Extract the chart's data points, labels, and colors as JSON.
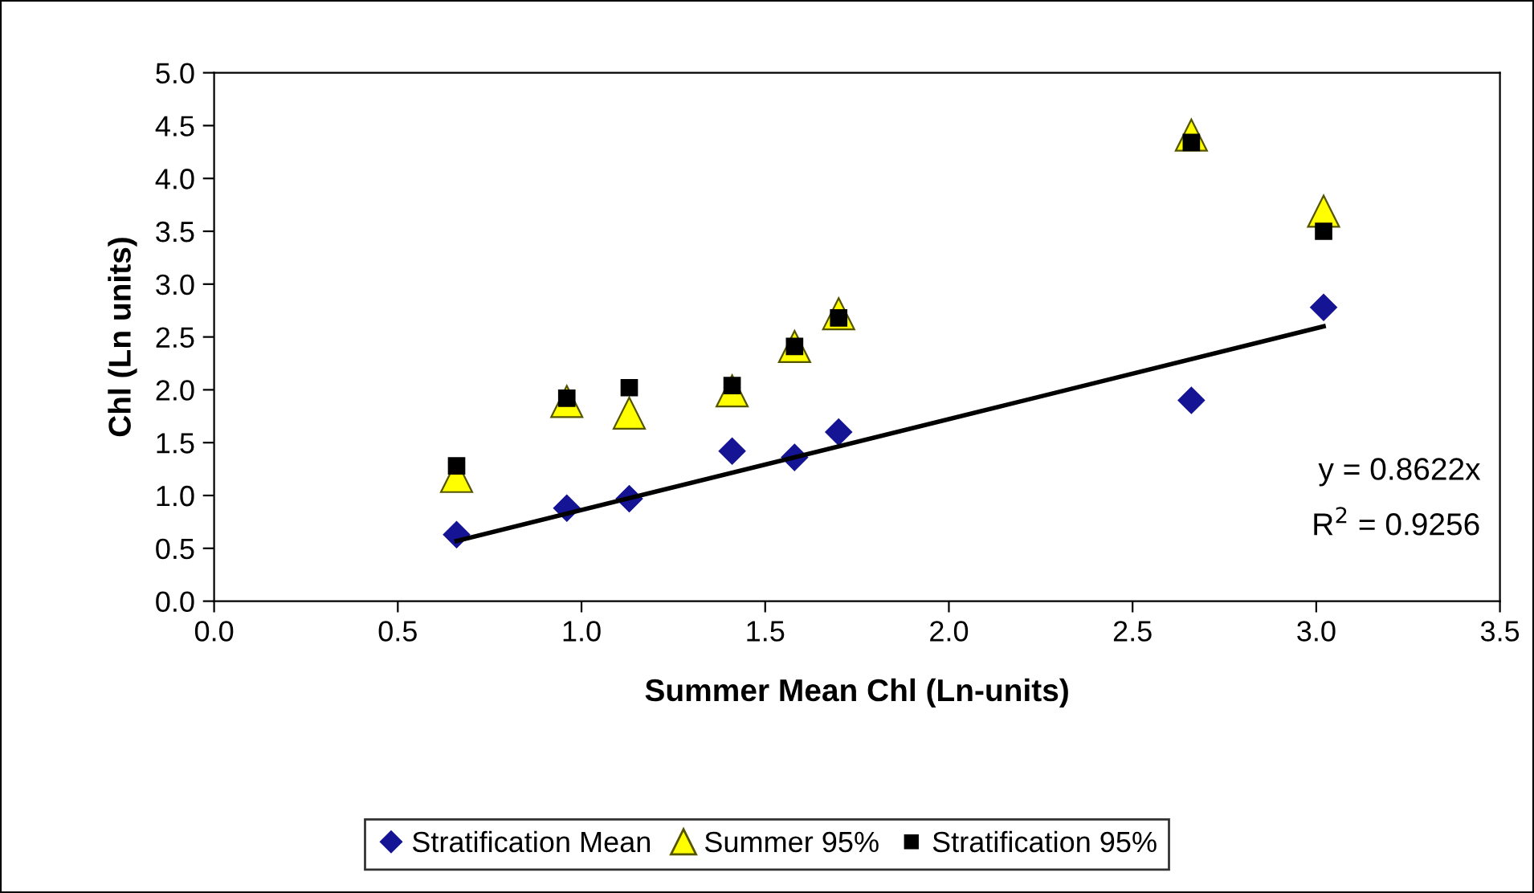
{
  "chart_data": {
    "type": "scatter",
    "xlabel": "Summer Mean Chl (Ln-units)",
    "ylabel": "Chl (Ln units)",
    "xlim": [
      0,
      3.5
    ],
    "ylim": [
      0,
      5
    ],
    "xticks": [
      {
        "value": 0,
        "label": "0.0"
      },
      0.5,
      {
        "value": 1,
        "label": "1.0"
      },
      1.5,
      {
        "value": 2,
        "label": "2.0"
      },
      2.5,
      {
        "value": 3,
        "label": "3.0"
      },
      3.5
    ],
    "yticks": [
      {
        "value": 0,
        "label": "0.0"
      },
      0.5,
      {
        "value": 1,
        "label": "1.0"
      },
      1.5,
      {
        "value": 2,
        "label": "2.0"
      },
      2.5,
      {
        "value": 3,
        "label": "3.0"
      },
      3.5,
      {
        "value": 4,
        "label": "4.0"
      },
      4.5,
      {
        "value": 5,
        "label": "5.0"
      }
    ],
    "grid": false,
    "legend": "bottom",
    "annotations": [
      "y = 0.8622x",
      "R$^{2}$ = 0.9256"
    ],
    "series": [
      {
        "name": "Stratification Mean",
        "marker": "diamond",
        "color": "#141494",
        "x": [
          0.66,
          0.96,
          1.13,
          1.41,
          1.58,
          1.7,
          2.66,
          3.02
        ],
        "values": [
          0.63,
          0.88,
          0.97,
          1.42,
          1.36,
          1.6,
          1.9,
          2.78
        ]
      },
      {
        "name": "Summer 95%",
        "marker": "triangle",
        "color": "#ffff00",
        "x": [
          0.66,
          0.96,
          1.13,
          1.41,
          1.58,
          1.7,
          2.66,
          3.02
        ],
        "values": [
          1.18,
          1.89,
          1.78,
          1.99,
          2.41,
          2.72,
          4.41,
          3.69
        ]
      },
      {
        "name": "Stratification 95%",
        "marker": "square",
        "color": "#000000",
        "x": [
          0.66,
          0.96,
          1.13,
          1.41,
          1.58,
          1.7,
          2.66,
          3.02
        ],
        "values": [
          1.28,
          1.92,
          2.02,
          2.04,
          2.41,
          2.68,
          4.34,
          3.5
        ]
      },
      {
        "type": "line",
        "line_style": "solid",
        "marker": "none",
        "color": "#000000",
        "x": [
          0.66,
          3.02
        ],
        "values": [
          0.57,
          2.6
        ]
      }
    ]
  }
}
